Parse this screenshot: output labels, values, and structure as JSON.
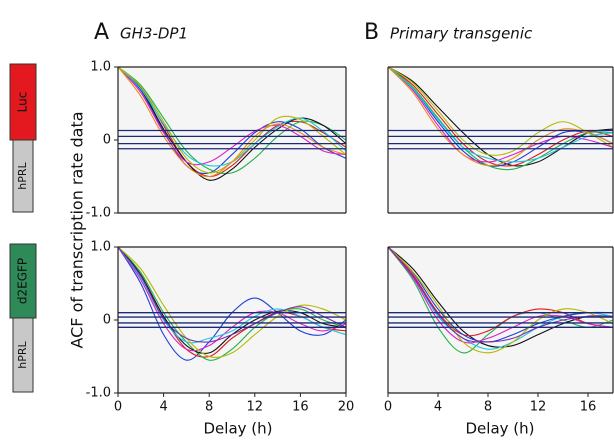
{
  "constructs": [
    {
      "reporter": "Luc",
      "promoter": "hPRL",
      "color": "#e3191f"
    },
    {
      "reporter": "d2EGFP",
      "promoter": "hPRL",
      "color": "#2e8a57"
    }
  ],
  "chart_data": [
    {
      "type": "line",
      "panel": "A",
      "title": "GH3-DP1",
      "ylabel": "ACF of transcription rate data",
      "x": [
        0,
        2,
        4,
        6,
        8,
        10,
        12,
        14,
        16,
        18,
        20
      ],
      "xlim": [
        0,
        20
      ],
      "ylim": [
        -1,
        1
      ],
      "yticks": [
        {
          "value": 1,
          "label": "1.0"
        },
        0,
        {
          "value": -1,
          "label": "-1.0"
        }
      ],
      "hlines": [
        0.13,
        0.05,
        -0.05,
        -0.12
      ],
      "hline_color": "#1c2a7a",
      "series": [
        {
          "color": "#e0191f",
          "values": [
            1,
            0.72,
            0.2,
            -0.3,
            -0.5,
            -0.35,
            -0.05,
            0.2,
            0.25,
            0.1,
            -0.1
          ]
        },
        {
          "color": "#1f3fd6",
          "values": [
            1,
            0.68,
            0.12,
            -0.35,
            -0.45,
            -0.2,
            0.1,
            0.25,
            0.15,
            -0.1,
            -0.25
          ]
        },
        {
          "color": "#22b14c",
          "values": [
            1,
            0.75,
            0.3,
            -0.15,
            -0.4,
            -0.45,
            -0.25,
            0.05,
            0.25,
            0.2,
            0
          ]
        },
        {
          "color": "#111111",
          "values": [
            1,
            0.7,
            0.15,
            -0.3,
            -0.55,
            -0.4,
            -0.1,
            0.15,
            0.3,
            0.2,
            -0.05
          ]
        },
        {
          "color": "#e020c8",
          "values": [
            1,
            0.65,
            0.1,
            -0.3,
            -0.3,
            -0.1,
            0.12,
            0.2,
            0.05,
            -0.15,
            -0.2
          ]
        },
        {
          "color": "#18c8e0",
          "values": [
            1,
            0.7,
            0.22,
            -0.2,
            -0.35,
            -0.3,
            -0.05,
            0.18,
            0.3,
            0.12,
            -0.15
          ]
        },
        {
          "color": "#b5b800",
          "values": [
            1,
            0.73,
            0.25,
            -0.25,
            -0.45,
            -0.3,
            0,
            0.3,
            0.28,
            0.05,
            -0.2
          ]
        },
        {
          "color": "#f08a1c",
          "values": [
            1,
            0.6,
            0.05,
            -0.35,
            -0.5,
            -0.3,
            0.05,
            0.22,
            0.1,
            -0.1,
            -0.2
          ]
        }
      ]
    },
    {
      "type": "line",
      "panel": "B",
      "title": "Primary transgenic",
      "x": [
        0,
        2,
        4,
        6,
        8,
        10,
        12,
        14,
        16,
        18
      ],
      "xlim": [
        0,
        18
      ],
      "ylim": [
        -1,
        1
      ],
      "hlines": [
        0.13,
        0.05,
        -0.05,
        -0.12
      ],
      "hline_color": "#1c2a7a",
      "series": [
        {
          "color": "#111111",
          "values": [
            1,
            0.8,
            0.45,
            0.1,
            -0.2,
            -0.35,
            -0.3,
            -0.1,
            0.1,
            0.15
          ]
        },
        {
          "color": "#e0191f",
          "values": [
            1,
            0.75,
            0.35,
            -0.05,
            -0.3,
            -0.35,
            -0.2,
            0,
            0.12,
            0.05
          ]
        },
        {
          "color": "#1f3fd6",
          "values": [
            1,
            0.7,
            0.25,
            -0.15,
            -0.35,
            -0.3,
            -0.1,
            0.1,
            0.1,
            -0.05
          ]
        },
        {
          "color": "#22b14c",
          "values": [
            1,
            0.72,
            0.3,
            -0.1,
            -0.35,
            -0.4,
            -0.25,
            -0.05,
            0.1,
            0.1
          ]
        },
        {
          "color": "#b5b800",
          "values": [
            1,
            0.78,
            0.4,
            0,
            -0.2,
            -0.15,
            0.1,
            0.25,
            0.1,
            -0.1
          ]
        },
        {
          "color": "#e020c8",
          "values": [
            1,
            0.68,
            0.2,
            -0.2,
            -0.3,
            -0.2,
            -0.05,
            0.05,
            0,
            -0.1
          ]
        },
        {
          "color": "#18c8e0",
          "values": [
            1,
            0.7,
            0.28,
            -0.1,
            -0.25,
            -0.3,
            -0.25,
            -0.1,
            0.05,
            0.1
          ]
        },
        {
          "color": "#f08a1c",
          "values": [
            1,
            0.65,
            0.15,
            -0.2,
            -0.35,
            -0.25,
            0,
            0.15,
            0.1,
            -0.05
          ]
        }
      ]
    },
    {
      "type": "line",
      "xlabel": "Delay (h)",
      "x": [
        0,
        2,
        4,
        6,
        8,
        10,
        12,
        14,
        16,
        18,
        20
      ],
      "xlim": [
        0,
        20
      ],
      "ylim": [
        -1,
        1
      ],
      "xticks": [
        0,
        4,
        8,
        12,
        16,
        20
      ],
      "yticks": [
        {
          "value": 1,
          "label": "1.0"
        },
        0,
        {
          "value": -1,
          "label": "-1.0"
        }
      ],
      "hlines": [
        0.1,
        0.04,
        -0.04,
        -0.1
      ],
      "hline_color": "#1c2a7a",
      "series": [
        {
          "color": "#1f3fd6",
          "values": [
            1,
            0.5,
            -0.2,
            -0.55,
            -0.3,
            0.1,
            0.3,
            0.1,
            -0.15,
            -0.2,
            0
          ]
        },
        {
          "color": "#e0191f",
          "values": [
            1,
            0.6,
            0.05,
            -0.4,
            -0.5,
            -0.25,
            -0.05,
            0.1,
            0.05,
            -0.1,
            -0.15
          ]
        },
        {
          "color": "#22b14c",
          "values": [
            1,
            0.65,
            0.1,
            -0.3,
            -0.55,
            -0.4,
            -0.1,
            0.1,
            0.15,
            0,
            -0.1
          ]
        },
        {
          "color": "#111111",
          "values": [
            1,
            0.62,
            0.05,
            -0.35,
            -0.45,
            -0.2,
            0,
            0.12,
            0.1,
            -0.05,
            -0.1
          ]
        },
        {
          "color": "#e020c8",
          "values": [
            1,
            0.55,
            -0.05,
            -0.4,
            -0.35,
            -0.1,
            0.1,
            0.1,
            -0.05,
            -0.15,
            -0.05
          ]
        },
        {
          "color": "#18c8e0",
          "values": [
            1,
            0.58,
            0,
            -0.3,
            -0.25,
            -0.15,
            0.05,
            0.15,
            0.05,
            -0.1,
            -0.2
          ]
        },
        {
          "color": "#b5b800",
          "values": [
            1,
            0.7,
            0.2,
            -0.25,
            -0.5,
            -0.45,
            -0.2,
            0.05,
            0.2,
            0.15,
            0
          ]
        },
        {
          "color": "#7a2fb5",
          "values": [
            1,
            0.6,
            0.02,
            -0.25,
            -0.3,
            -0.2,
            -0.05,
            0.1,
            0.18,
            0.05,
            -0.1
          ]
        }
      ]
    },
    {
      "type": "line",
      "xlabel": "Delay (h)",
      "x": [
        0,
        2,
        4,
        6,
        8,
        10,
        12,
        14,
        16,
        18
      ],
      "xlim": [
        0,
        18
      ],
      "ylim": [
        -1,
        1
      ],
      "xticks": [
        0,
        4,
        8,
        12,
        16
      ],
      "hlines": [
        0.1,
        0.04,
        -0.04,
        -0.1
      ],
      "hline_color": "#1c2a7a",
      "series": [
        {
          "color": "#22b14c",
          "values": [
            1,
            0.55,
            -0.1,
            -0.45,
            -0.2,
            0.05,
            0.1,
            0,
            -0.1,
            0
          ]
        },
        {
          "color": "#111111",
          "values": [
            1,
            0.7,
            0.25,
            -0.15,
            -0.35,
            -0.35,
            -0.2,
            -0.05,
            0.05,
            0.05
          ]
        },
        {
          "color": "#18c8e0",
          "values": [
            1,
            0.6,
            0.05,
            -0.25,
            -0.4,
            -0.3,
            -0.1,
            0.05,
            0.1,
            0.05
          ]
        },
        {
          "color": "#e0191f",
          "values": [
            1,
            0.62,
            0.1,
            -0.2,
            -0.15,
            0.05,
            0.15,
            0.1,
            -0.05,
            -0.1
          ]
        },
        {
          "color": "#1f3fd6",
          "values": [
            1,
            0.65,
            0.15,
            -0.2,
            -0.3,
            -0.2,
            -0.05,
            0.05,
            0.1,
            0.1
          ]
        },
        {
          "color": "#e020c8",
          "values": [
            1,
            0.58,
            0,
            -0.3,
            -0.25,
            -0.1,
            0.05,
            0.05,
            -0.05,
            -0.1
          ]
        },
        {
          "color": "#b5b800",
          "values": [
            1,
            0.66,
            0.2,
            -0.3,
            -0.45,
            -0.3,
            0,
            0.15,
            0.1,
            -0.05
          ]
        },
        {
          "color": "#7a2fb5",
          "values": [
            1,
            0.6,
            0.08,
            -0.25,
            -0.3,
            -0.25,
            -0.1,
            0,
            0.05,
            0.05
          ]
        }
      ]
    }
  ]
}
